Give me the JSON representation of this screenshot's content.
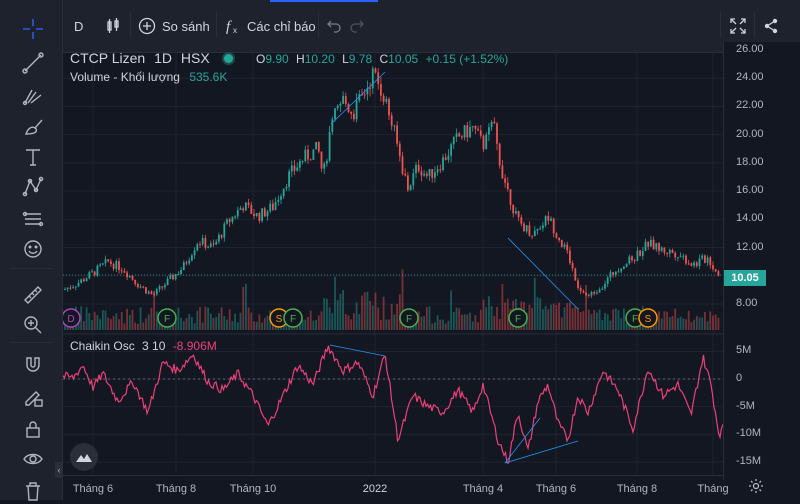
{
  "toolbar": {
    "interval": "D",
    "compare_label": "So sánh",
    "indicators_label": "Các chỉ báo"
  },
  "legend": {
    "name": "CTCP Lizen",
    "interval": "1D",
    "exchange": "HSX",
    "o_label": "O",
    "open": "9.90",
    "h_label": "H",
    "high": "10.20",
    "l_label": "L",
    "low": "9.78",
    "c_label": "C",
    "close": "10.05",
    "change": "+0.15 (+1.52%)",
    "volume_label": "Volume - Khối lượng",
    "volume_value": "535.6K",
    "osc_label": "Chaikin Osc",
    "osc_params": "3 10",
    "osc_value": "-8.906M"
  },
  "last_price": "10.05",
  "colors": {
    "up": "#26a69a",
    "down": "#ef5350",
    "osc": "#ec407a",
    "trend": "#2196f3"
  },
  "chart_data": {
    "type": "candlestick",
    "price_axis_ticks": [
      "26.00",
      "24.00",
      "22.00",
      "20.00",
      "18.00",
      "16.00",
      "14.00",
      "12.00",
      "10.05",
      "8.00"
    ],
    "osc_axis_ticks": [
      "5M",
      "0",
      "-5M",
      "-10M",
      "-15M"
    ],
    "x_ticks": [
      "Tháng 6",
      "Tháng 8",
      "Tháng 10",
      "2022",
      "Tháng 4",
      "Tháng 6",
      "Tháng 8",
      "Tháng"
    ],
    "price_ylim": [
      7,
      26.5
    ],
    "osc_ylim": [
      -16,
      6
    ],
    "event_markers": [
      "D",
      "F",
      "S",
      "F",
      "F",
      "F",
      "F",
      "S"
    ],
    "price_path": [
      [
        0,
        9.0
      ],
      [
        15,
        9.5
      ],
      [
        30,
        10.2
      ],
      [
        45,
        11.0
      ],
      [
        60,
        10.5
      ],
      [
        75,
        9.4
      ],
      [
        90,
        8.6
      ],
      [
        105,
        9.6
      ],
      [
        120,
        10.6
      ],
      [
        135,
        12.5
      ],
      [
        150,
        12.0
      ],
      [
        165,
        13.8
      ],
      [
        180,
        15.0
      ],
      [
        195,
        14.2
      ],
      [
        210,
        14.9
      ],
      [
        225,
        17.0
      ],
      [
        240,
        18.3
      ],
      [
        255,
        19.0
      ],
      [
        260,
        17.0
      ],
      [
        270,
        21.0
      ],
      [
        280,
        22.5
      ],
      [
        290,
        21.5
      ],
      [
        300,
        22.8
      ],
      [
        310,
        24.3
      ],
      [
        320,
        23.0
      ],
      [
        330,
        20.5
      ],
      [
        340,
        17.5
      ],
      [
        345,
        16.2
      ],
      [
        355,
        17.8
      ],
      [
        365,
        17.0
      ],
      [
        380,
        18.2
      ],
      [
        395,
        19.8
      ],
      [
        410,
        20.5
      ],
      [
        420,
        19.2
      ],
      [
        430,
        20.8
      ],
      [
        437,
        18.0
      ],
      [
        445,
        16.0
      ],
      [
        455,
        13.8
      ],
      [
        470,
        13.0
      ],
      [
        485,
        14.2
      ],
      [
        495,
        12.8
      ],
      [
        505,
        11.5
      ],
      [
        515,
        9.3
      ],
      [
        525,
        8.5
      ],
      [
        540,
        9.4
      ],
      [
        555,
        10.6
      ],
      [
        570,
        11.2
      ],
      [
        585,
        12.3
      ],
      [
        600,
        11.8
      ],
      [
        615,
        11.6
      ],
      [
        630,
        10.8
      ],
      [
        645,
        11.3
      ],
      [
        652,
        10.4
      ],
      [
        660,
        10.05
      ]
    ],
    "osc_path": [
      [
        0,
        0.5
      ],
      [
        10,
        0.2
      ],
      [
        20,
        2.5
      ],
      [
        30,
        -1.5
      ],
      [
        40,
        1.0
      ],
      [
        55,
        -4.0
      ],
      [
        70,
        -0.5
      ],
      [
        85,
        -6.0
      ],
      [
        100,
        3.0
      ],
      [
        115,
        1.5
      ],
      [
        130,
        4.5
      ],
      [
        145,
        -0.5
      ],
      [
        160,
        -2.0
      ],
      [
        175,
        1.0
      ],
      [
        190,
        -3.0
      ],
      [
        205,
        -8.5
      ],
      [
        220,
        -3.0
      ],
      [
        235,
        2.5
      ],
      [
        250,
        -1.0
      ],
      [
        265,
        6.0
      ],
      [
        280,
        1.5
      ],
      [
        295,
        3.0
      ],
      [
        310,
        -3.0
      ],
      [
        322,
        4.5
      ],
      [
        335,
        -11.0
      ],
      [
        350,
        -3.0
      ],
      [
        365,
        -5.0
      ],
      [
        380,
        -6.0
      ],
      [
        395,
        -2.0
      ],
      [
        410,
        -6.0
      ],
      [
        420,
        -1.0
      ],
      [
        435,
        -11.0
      ],
      [
        445,
        -15.0
      ],
      [
        455,
        -6.0
      ],
      [
        465,
        -13.0
      ],
      [
        475,
        -4.0
      ],
      [
        485,
        -1.0
      ],
      [
        495,
        -8.0
      ],
      [
        505,
        -11.0
      ],
      [
        515,
        -3.0
      ],
      [
        525,
        -6.0
      ],
      [
        540,
        1.5
      ],
      [
        555,
        -2.0
      ],
      [
        570,
        -9.0
      ],
      [
        585,
        2.0
      ],
      [
        600,
        -3.0
      ],
      [
        615,
        -1.0
      ],
      [
        628,
        -6.5
      ],
      [
        640,
        4.0
      ],
      [
        648,
        -1.0
      ],
      [
        656,
        -10.0
      ],
      [
        660,
        -8.9
      ]
    ]
  }
}
